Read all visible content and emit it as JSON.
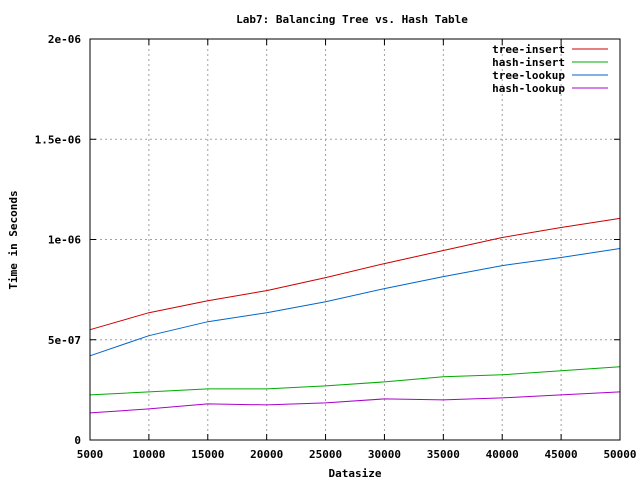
{
  "chart_data": {
    "type": "line",
    "title": "Lab7: Balancing Tree vs. Hash Table",
    "xlabel": "Datasize",
    "ylabel": "Time in Seconds",
    "xlim": [
      5000,
      50000
    ],
    "ylim": [
      0,
      2e-06
    ],
    "x_ticks": [
      5000,
      10000,
      15000,
      20000,
      25000,
      30000,
      35000,
      40000,
      45000,
      50000
    ],
    "x_tick_labels": [
      "5000",
      "10000",
      "15000",
      "20000",
      "25000",
      "30000",
      "35000",
      "40000",
      "45000",
      "50000"
    ],
    "y_ticks": [
      0,
      5e-07,
      1e-06,
      1.5e-06,
      2e-06
    ],
    "y_tick_labels": [
      "0",
      "5e-07",
      "1e-06",
      "1.5e-06",
      "2e-06"
    ],
    "grid": true,
    "legend_position": "top-right",
    "x": [
      5000,
      10000,
      15000,
      20000,
      25000,
      30000,
      35000,
      40000,
      45000,
      50000
    ],
    "series": [
      {
        "name": "tree-insert",
        "color": "#cc0000",
        "values": [
          5.5e-07,
          6.35e-07,
          6.95e-07,
          7.45e-07,
          8.1e-07,
          8.8e-07,
          9.45e-07,
          1.01e-06,
          1.06e-06,
          1.105e-06
        ]
      },
      {
        "name": "hash-insert",
        "color": "#00aa00",
        "values": [
          2.25e-07,
          2.4e-07,
          2.55e-07,
          2.55e-07,
          2.7e-07,
          2.9e-07,
          3.15e-07,
          3.25e-07,
          3.45e-07,
          3.65e-07
        ]
      },
      {
        "name": "tree-lookup",
        "color": "#0066cc",
        "values": [
          4.2e-07,
          5.2e-07,
          5.9e-07,
          6.35e-07,
          6.9e-07,
          7.55e-07,
          8.15e-07,
          8.7e-07,
          9.1e-07,
          9.55e-07
        ]
      },
      {
        "name": "hash-lookup",
        "color": "#aa00cc",
        "values": [
          1.35e-07,
          1.55e-07,
          1.8e-07,
          1.75e-07,
          1.85e-07,
          2.05e-07,
          2e-07,
          2.1e-07,
          2.25e-07,
          2.4e-07
        ]
      }
    ]
  }
}
